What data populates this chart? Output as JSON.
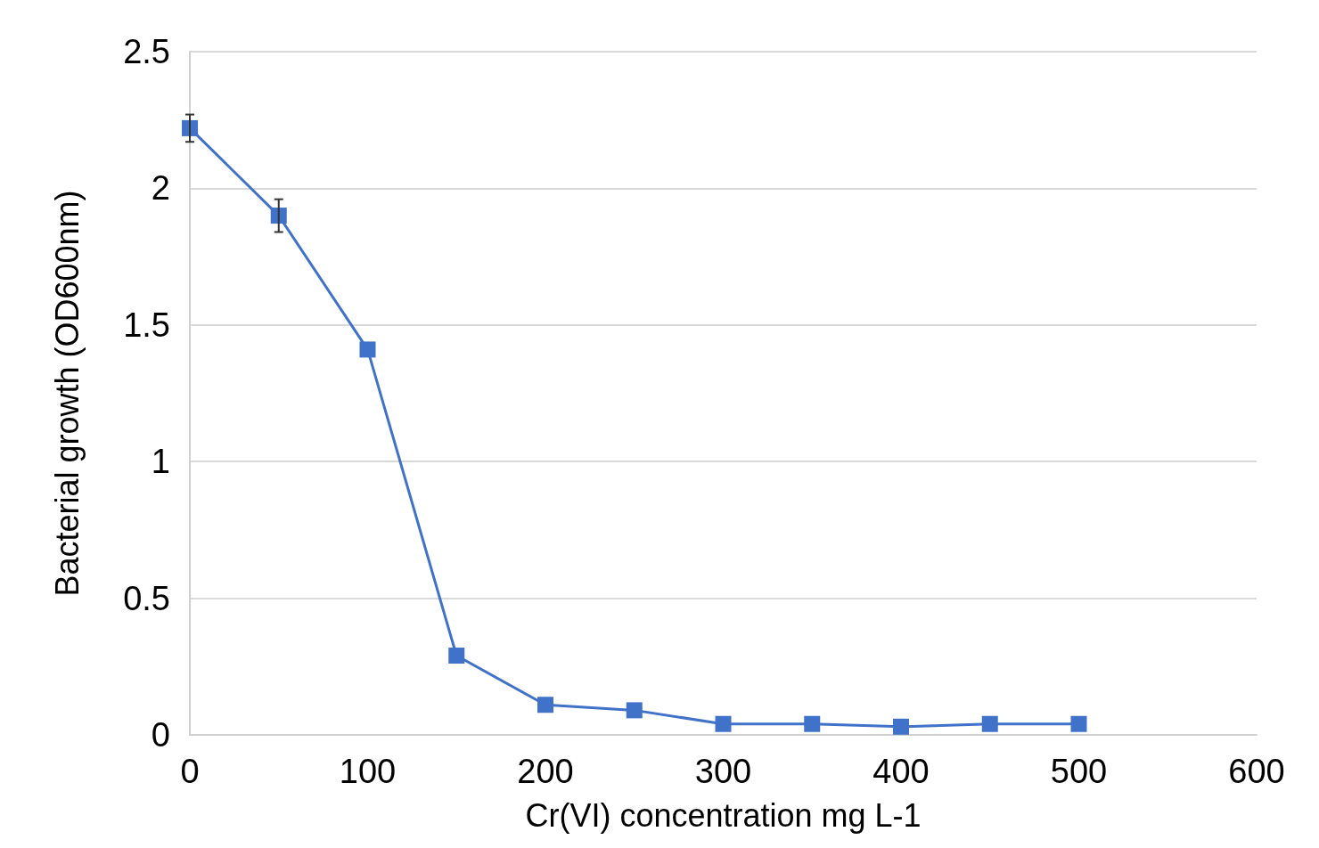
{
  "chart_data": {
    "type": "line",
    "xlabel": "Cr(VI) concentration mg L-1",
    "ylabel": "Bacterial growth (OD600nm)",
    "x": [
      0,
      50,
      100,
      150,
      200,
      250,
      300,
      350,
      400,
      450,
      500
    ],
    "values": [
      2.22,
      1.9,
      1.41,
      0.29,
      0.11,
      0.09,
      0.04,
      0.04,
      0.03,
      0.04,
      0.04
    ],
    "errors": [
      0.05,
      0.06,
      null,
      null,
      null,
      null,
      null,
      null,
      null,
      null,
      null
    ],
    "color": "#3f72c8",
    "marker": "square",
    "line_style": "solid",
    "xlim": [
      0,
      600
    ],
    "xticks": [
      0,
      100,
      200,
      300,
      400,
      500,
      600
    ],
    "ylim": [
      0,
      2.5
    ],
    "yticks": [
      0,
      0.5,
      1,
      1.5,
      2,
      2.5
    ],
    "grid": "y"
  }
}
